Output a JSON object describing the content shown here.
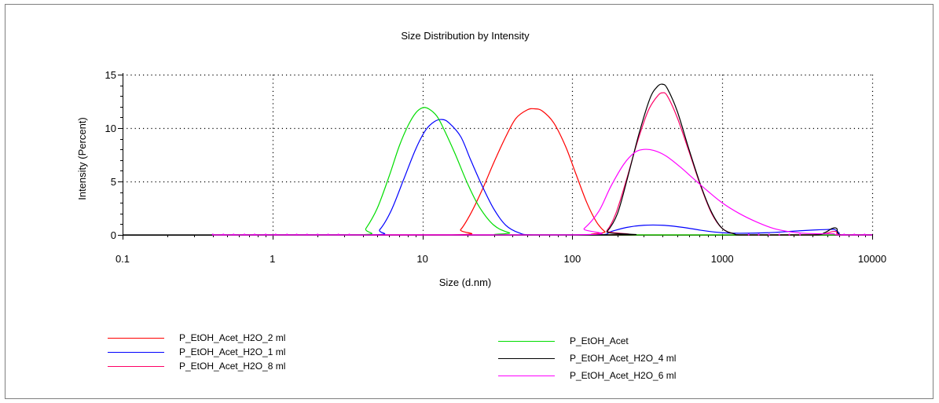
{
  "chart_data": {
    "type": "line",
    "title": "Size Distribution by Intensity",
    "xlabel": "Size (d.nm)",
    "ylabel": "Intensity (Percent)",
    "xscale": "log",
    "xlim": [
      0.1,
      10000
    ],
    "ylim": [
      0,
      15
    ],
    "xticks": [
      0.1,
      1,
      10,
      100,
      1000,
      10000
    ],
    "xtick_labels": [
      "0.1",
      "1",
      "10",
      "100",
      "1000",
      "10000"
    ],
    "yticks": [
      0,
      5,
      10,
      15
    ],
    "ytick_labels": [
      "0",
      "5",
      "10",
      "15"
    ],
    "grid": true,
    "legend_position": "bottom",
    "series": [
      {
        "name": "P_EtOH_Acet_H2O_2 ml",
        "color": "#ff0000",
        "points": [
          [
            0.4,
            0
          ],
          [
            15.7,
            0
          ],
          [
            18,
            0.5
          ],
          [
            21,
            2
          ],
          [
            25,
            4.2
          ],
          [
            30,
            6.8
          ],
          [
            36,
            9.2
          ],
          [
            42,
            10.9
          ],
          [
            50,
            11.7
          ],
          [
            56,
            11.8
          ],
          [
            63,
            11.6
          ],
          [
            75,
            10.5
          ],
          [
            90,
            8.3
          ],
          [
            105,
            5.8
          ],
          [
            125,
            3.0
          ],
          [
            145,
            1.2
          ],
          [
            165,
            0.3
          ],
          [
            185,
            0
          ],
          [
            10000,
            0
          ]
        ]
      },
      {
        "name": "P_EtOH_Acet_H2O_1 ml",
        "color": "#0000ff",
        "points": [
          [
            0.4,
            0
          ],
          [
            4.5,
            0
          ],
          [
            5.2,
            0.5
          ],
          [
            6.2,
            2.3
          ],
          [
            7.5,
            5.2
          ],
          [
            9,
            8.0
          ],
          [
            10.5,
            9.8
          ],
          [
            12,
            10.6
          ],
          [
            13.5,
            10.8
          ],
          [
            15,
            10.5
          ],
          [
            18,
            9.2
          ],
          [
            21,
            7.0
          ],
          [
            25,
            4.6
          ],
          [
            30,
            2.4
          ],
          [
            36,
            0.9
          ],
          [
            44,
            0.2
          ],
          [
            55,
            0
          ],
          [
            150,
            0
          ],
          [
            180,
            0.3
          ],
          [
            230,
            0.7
          ],
          [
            300,
            0.9
          ],
          [
            400,
            0.9
          ],
          [
            550,
            0.7
          ],
          [
            750,
            0.4
          ],
          [
            1000,
            0.2
          ],
          [
            1300,
            0.15
          ],
          [
            2000,
            0.2
          ],
          [
            3000,
            0.35
          ],
          [
            4000,
            0.45
          ],
          [
            5000,
            0.5
          ],
          [
            5600,
            0.5
          ],
          [
            6000,
            0.2
          ],
          [
            6300,
            0
          ],
          [
            10000,
            0
          ]
        ]
      },
      {
        "name": "P_EtOH_Acet_H2O_8 ml",
        "color": "#ff0066",
        "points": [
          [
            0.4,
            0
          ],
          [
            150,
            0
          ],
          [
            170,
            0.4
          ],
          [
            195,
            2.0
          ],
          [
            230,
            5.2
          ],
          [
            270,
            8.6
          ],
          [
            320,
            11.6
          ],
          [
            370,
            13.0
          ],
          [
            400,
            13.3
          ],
          [
            430,
            13.0
          ],
          [
            500,
            11.0
          ],
          [
            600,
            7.8
          ],
          [
            720,
            4.5
          ],
          [
            850,
            2.0
          ],
          [
            1000,
            0.6
          ],
          [
            1200,
            0.1
          ],
          [
            1400,
            0
          ],
          [
            4000,
            0
          ],
          [
            4800,
            0.1
          ],
          [
            5400,
            0.3
          ],
          [
            5800,
            0.3
          ],
          [
            6100,
            0
          ],
          [
            10000,
            0
          ]
        ]
      },
      {
        "name": "P_EtOH_Acet",
        "color": "#00dd00",
        "points": [
          [
            0.4,
            0
          ],
          [
            3.8,
            0
          ],
          [
            4.2,
            0.6
          ],
          [
            5,
            2.5
          ],
          [
            6,
            5.5
          ],
          [
            7,
            8.3
          ],
          [
            8,
            10.2
          ],
          [
            9,
            11.4
          ],
          [
            10,
            11.9
          ],
          [
            11,
            11.8
          ],
          [
            12.5,
            11.1
          ],
          [
            14,
            9.8
          ],
          [
            16.5,
            7.6
          ],
          [
            20,
            4.8
          ],
          [
            24,
            2.6
          ],
          [
            30,
            0.9
          ],
          [
            38,
            0.2
          ],
          [
            48,
            0
          ],
          [
            10000,
            0
          ]
        ]
      },
      {
        "name": "P_EtOH_Acet_H2O_4 ml",
        "color": "#000000",
        "points": [
          [
            0.1,
            0
          ],
          [
            150,
            0
          ],
          [
            170,
            0.3
          ],
          [
            200,
            2.0
          ],
          [
            235,
            5.5
          ],
          [
            280,
            9.6
          ],
          [
            330,
            12.8
          ],
          [
            370,
            13.9
          ],
          [
            400,
            14.1
          ],
          [
            430,
            13.7
          ],
          [
            500,
            11.6
          ],
          [
            600,
            8.0
          ],
          [
            720,
            4.6
          ],
          [
            850,
            2.1
          ],
          [
            1000,
            0.6
          ],
          [
            1200,
            0.1
          ],
          [
            1400,
            0
          ],
          [
            4000,
            0
          ],
          [
            4800,
            0.2
          ],
          [
            5400,
            0.6
          ],
          [
            5800,
            0.6
          ],
          [
            6200,
            0
          ],
          [
            10000,
            0
          ]
        ]
      },
      {
        "name": "P_EtOH_Acet_H2O_6 ml",
        "color": "#ff00ff",
        "points": [
          [
            0.4,
            0
          ],
          [
            100,
            0
          ],
          [
            120,
            0.6
          ],
          [
            150,
            2.2
          ],
          [
            180,
            4.5
          ],
          [
            220,
            6.6
          ],
          [
            260,
            7.7
          ],
          [
            300,
            8.0
          ],
          [
            350,
            7.9
          ],
          [
            420,
            7.4
          ],
          [
            520,
            6.4
          ],
          [
            650,
            5.2
          ],
          [
            800,
            4.1
          ],
          [
            1000,
            3.0
          ],
          [
            1300,
            2.0
          ],
          [
            1700,
            1.2
          ],
          [
            2200,
            0.6
          ],
          [
            2800,
            0.3
          ],
          [
            3500,
            0.15
          ],
          [
            4500,
            0.1
          ],
          [
            5500,
            0.1
          ],
          [
            6000,
            0
          ],
          [
            10000,
            0
          ]
        ]
      }
    ]
  }
}
